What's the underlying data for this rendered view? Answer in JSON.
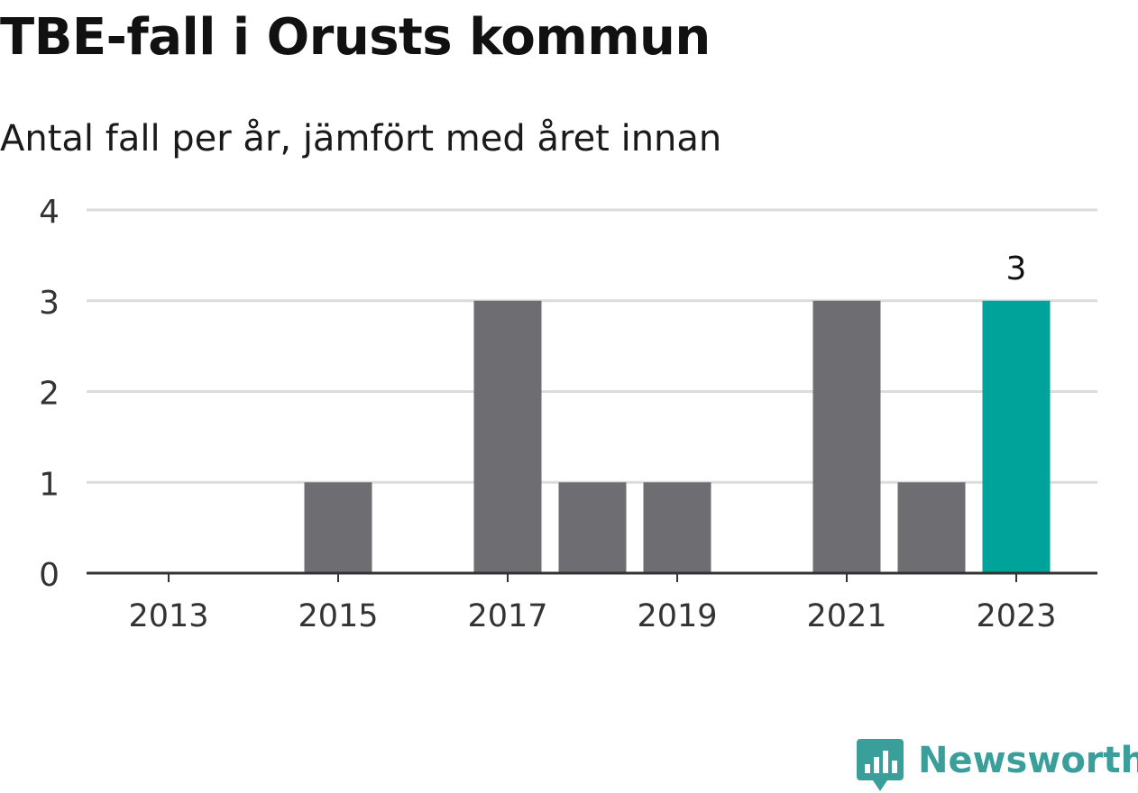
{
  "header": {
    "title": "TBE-fall i Orusts kommun",
    "subtitle": "Antal fall per år, jämfört med året innan"
  },
  "chart_data": {
    "type": "bar",
    "categories": [
      "2013",
      "2014",
      "2015",
      "2016",
      "2017",
      "2018",
      "2019",
      "2020",
      "2021",
      "2022",
      "2023"
    ],
    "values": [
      0,
      0,
      1,
      0,
      3,
      1,
      1,
      0,
      3,
      1,
      3
    ],
    "x_tick_labels": [
      "2013",
      "2015",
      "2017",
      "2019",
      "2021",
      "2023"
    ],
    "y_ticks": [
      0,
      1,
      2,
      3,
      4
    ],
    "ylim": [
      0,
      4
    ],
    "highlight_category": "2023",
    "highlight_label": "3",
    "xlabel": "",
    "ylabel": "",
    "grid": true,
    "legend": "none",
    "colors": {
      "bar": "#6e6d72",
      "highlight": "#00a39a",
      "grid": "#dcdcdc",
      "axis": "#333333",
      "tick_text": "#333333"
    }
  },
  "branding": {
    "name": "Newsworthy",
    "icon": "newsworthy-logo-icon",
    "color": "#3a9e9a"
  }
}
